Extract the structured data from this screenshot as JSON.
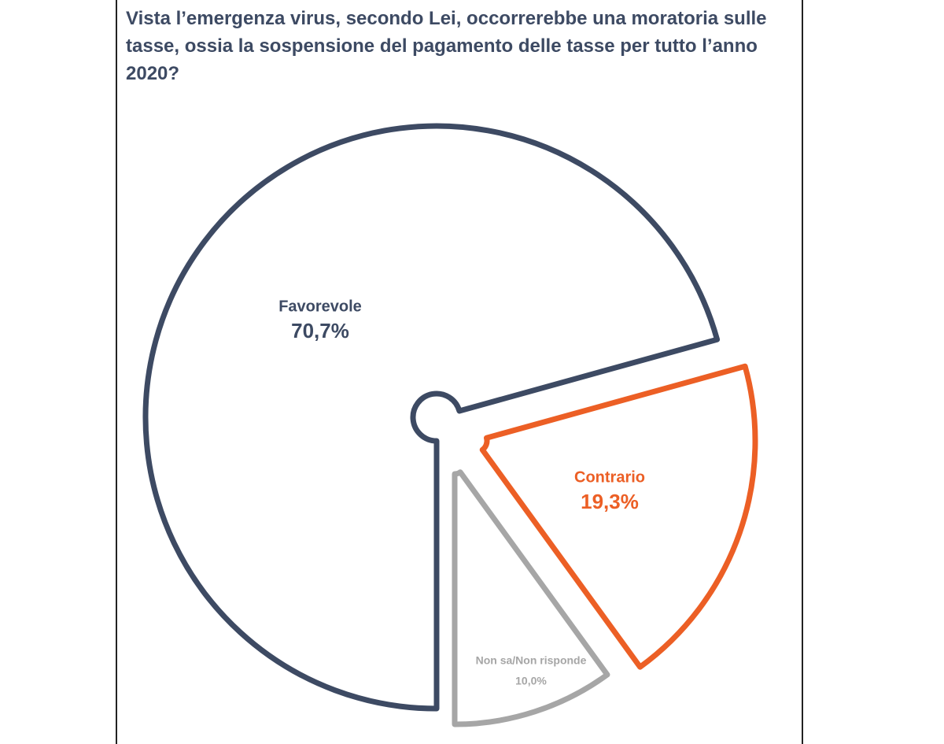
{
  "chart_data": {
    "type": "pie",
    "title": "Vista l’emergenza virus, secondo Lei, occorrerebbe una moratoria sulle tasse, ossia la sospensione del pagamento delle tasse per tutto l’anno 2020?",
    "categories": [
      "Favorevole",
      "Contrario",
      "Non sa/Non risponde"
    ],
    "values": [
      70.7,
      19.3,
      10.0
    ],
    "value_labels": [
      "70,7%",
      "19,3%",
      "10,0%"
    ],
    "colors": [
      "#3d4a63",
      "#ec5f25",
      "#a6a6a6"
    ]
  }
}
